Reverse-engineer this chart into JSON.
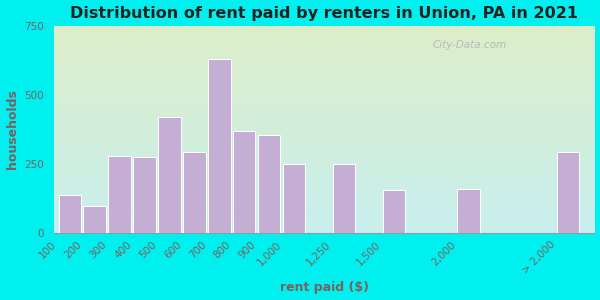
{
  "title": "Distribution of rent paid by renters in Union, PA in 2021",
  "xlabel": "rent paid ($)",
  "ylabel": "households",
  "bar_labels": [
    "100",
    "200",
    "300",
    "400",
    "500",
    "600",
    "700",
    "800",
    "900",
    "1,000",
    "1,250",
    "1,500",
    "2,000",
    "> 2,000"
  ],
  "bar_heights": [
    140,
    100,
    280,
    275,
    420,
    295,
    630,
    370,
    355,
    250,
    250,
    155,
    160,
    295
  ],
  "bar_color": "#c4aed4",
  "bar_edge_color": "#ffffff",
  "ylim": [
    0,
    750
  ],
  "yticks": [
    0,
    250,
    500,
    750
  ],
  "background_outer": "#00f0f0",
  "background_inner_top": "#ddeec8",
  "background_inner_bottom": "#c8eeee",
  "title_fontsize": 11.5,
  "axis_label_fontsize": 9,
  "tick_fontsize": 7.5,
  "tick_color": "#7a6060",
  "label_color": "#7a6060",
  "watermark": "City-Data.com"
}
